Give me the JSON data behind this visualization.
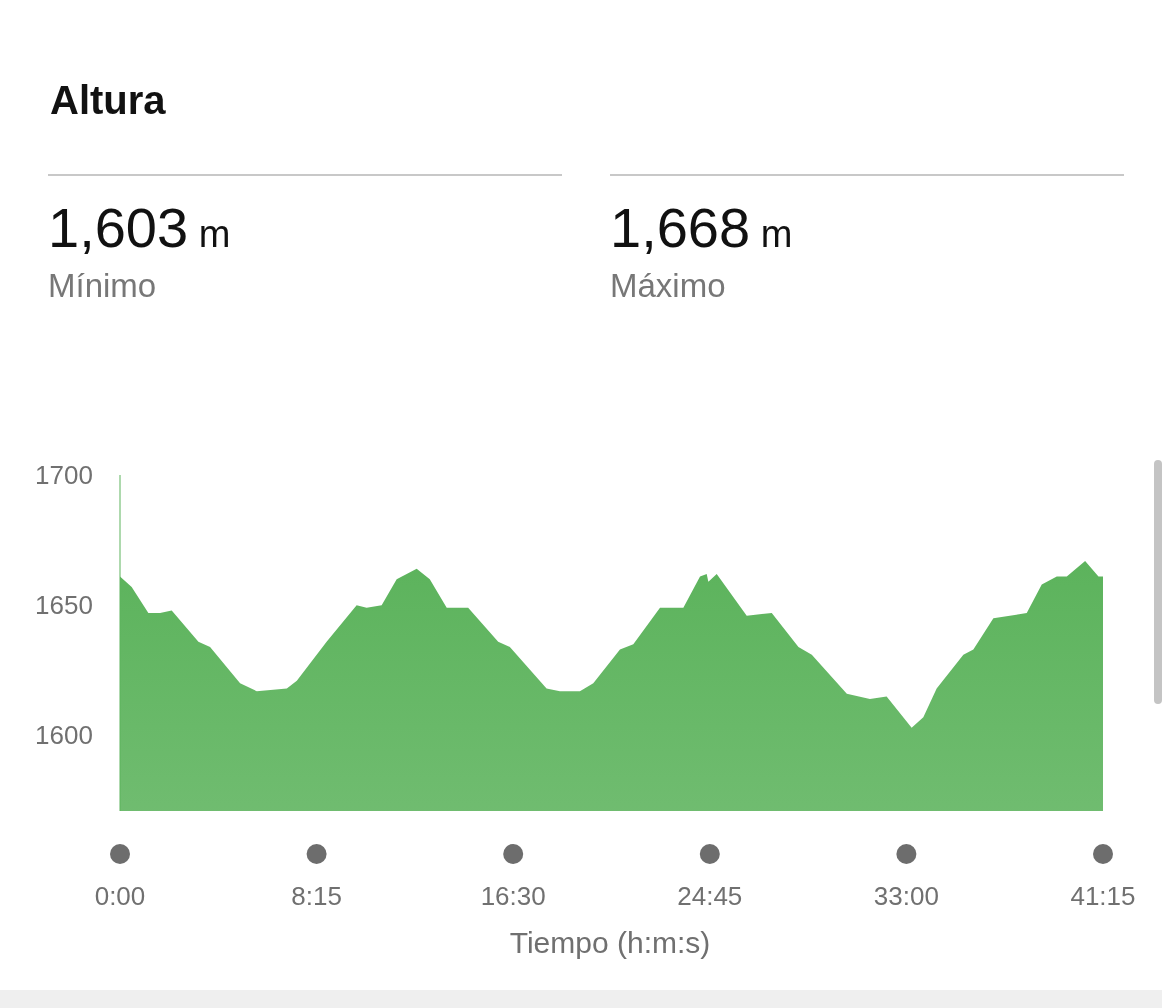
{
  "chart_data": {
    "type": "area",
    "title": "Altura",
    "annotations": [
      "1,603 m",
      "Mínimo",
      "1,668 m",
      "Máximo"
    ],
    "xlabel": "Tiempo (h:m:s)",
    "x": [
      0,
      0.49,
      1.19,
      1.68,
      2.17,
      3.29,
      3.78,
      5.04,
      5.74,
      7.0,
      7.42,
      8.67,
      9.93,
      10.35,
      10.98,
      11.61,
      12.45,
      13.0,
      13.71,
      14.61,
      15.87,
      16.36,
      17.9,
      18.46,
      19.3,
      19.86,
      20.98,
      21.54,
      22.66,
      23.64,
      24.34,
      24.62,
      24.69,
      25.04,
      26.3,
      27.35,
      28.47,
      29.03,
      30.5,
      31.47,
      32.17,
      33.22,
      33.71,
      34.27,
      35.39,
      35.81,
      36.65,
      38.05,
      38.68,
      39.31,
      39.73,
      40.5,
      41.06,
      41.25
    ],
    "series": [
      {
        "color": "#5cb35c",
        "values": [
          1661,
          1657,
          1647,
          1647,
          1648,
          1636,
          1634,
          1620,
          1617,
          1618,
          1621,
          1636,
          1650,
          1649,
          1650,
          1660,
          1664,
          1660,
          1649,
          1649,
          1636,
          1634,
          1618,
          1617,
          1617,
          1620,
          1633,
          1635,
          1649,
          1649,
          1661,
          1662,
          1659,
          1662,
          1646,
          1647,
          1634,
          1631,
          1616,
          1614,
          1615,
          1603,
          1607,
          1618,
          1631,
          1633,
          1645,
          1647,
          1658,
          1661,
          1661,
          1667,
          1661,
          1661
        ]
      }
    ],
    "xlim": [
      0,
      41.25
    ],
    "xticks": [
      {
        "value": 0,
        "label": "0:00"
      },
      {
        "value": 8.25,
        "label": "8:15"
      },
      {
        "value": 16.5,
        "label": "16:30"
      },
      {
        "value": 24.75,
        "label": "24:45"
      },
      {
        "value": 33,
        "label": "33:00"
      },
      {
        "value": 41.25,
        "label": "41:15"
      }
    ],
    "ylim": [
      1571,
      1700
    ],
    "yticks": [
      1600,
      1650,
      1700
    ],
    "grid": false,
    "legend": false,
    "marker": "none"
  }
}
